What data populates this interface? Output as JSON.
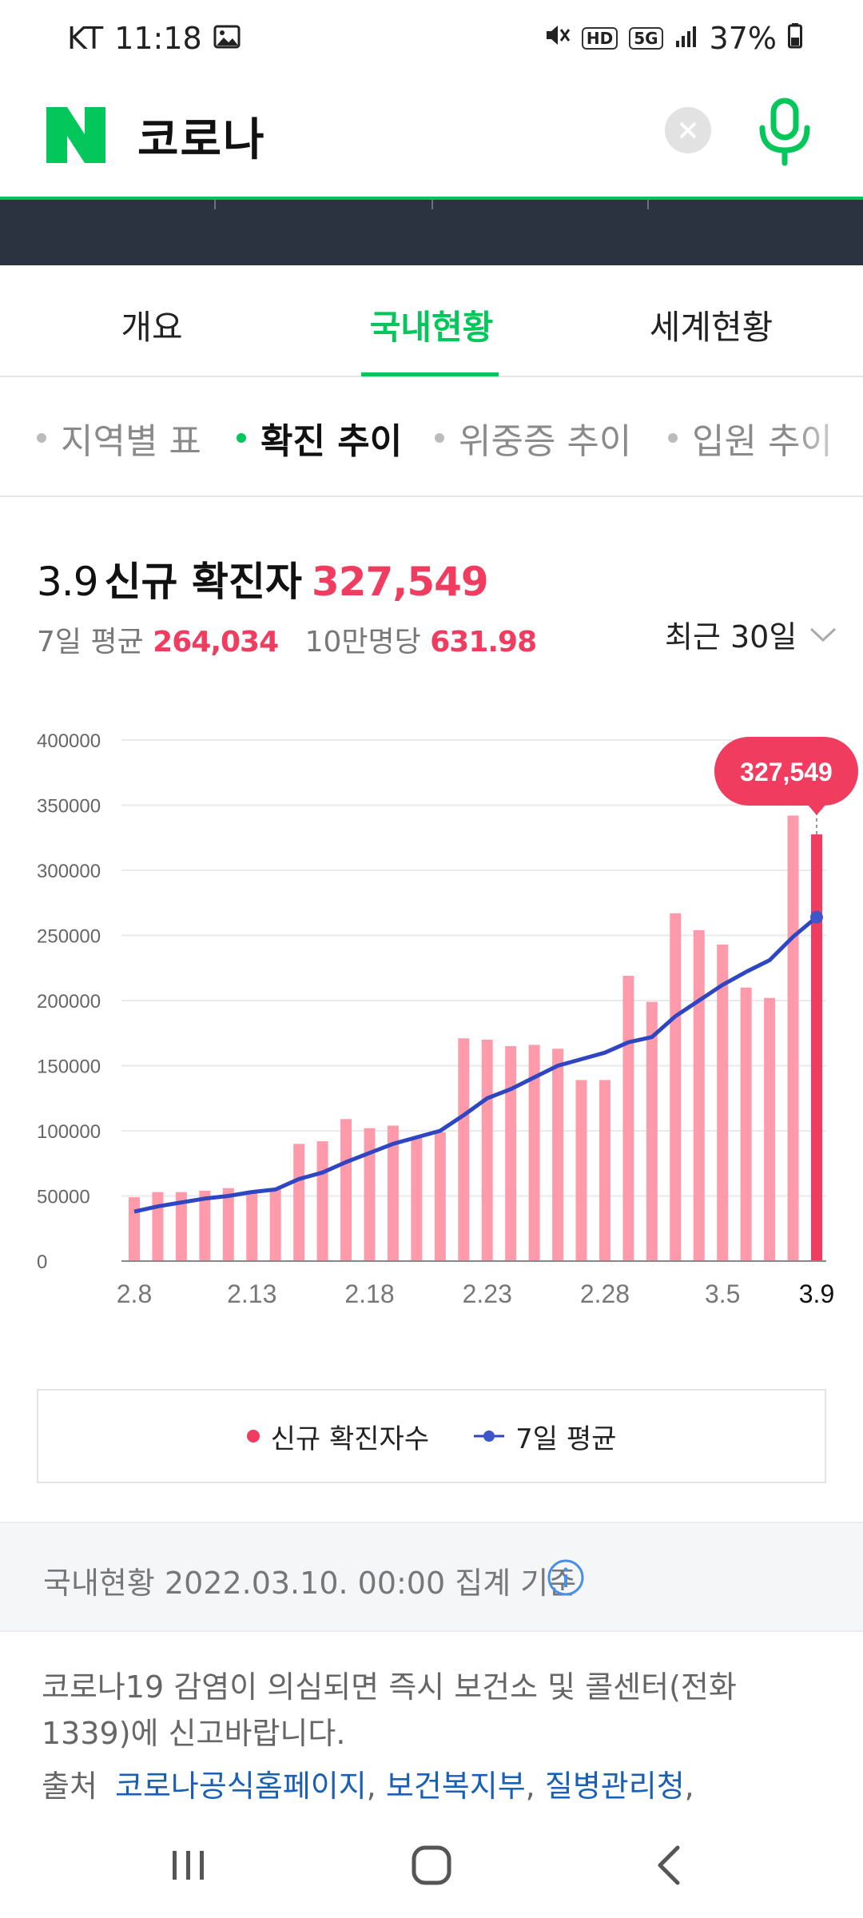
{
  "status_bar": {
    "carrier": "KT",
    "time": "11:18",
    "hd_badge": "HD",
    "net_badge": "5G",
    "battery": "37%",
    "icons": [
      "image-icon",
      "mute-icon",
      "signal-icon",
      "battery-icon"
    ]
  },
  "search": {
    "logo_letter": "N",
    "query": "코로나",
    "brand_color": "#03c75a"
  },
  "main_tabs": [
    {
      "label": "개요",
      "active": false
    },
    {
      "label": "국내현황",
      "active": true
    },
    {
      "label": "세계현황",
      "active": false
    }
  ],
  "sub_tabs": [
    {
      "label": "지역별 표",
      "active": false
    },
    {
      "label": "확진 추이",
      "active": true
    },
    {
      "label": "위중증 추이",
      "active": false
    },
    {
      "label": "입원 추이",
      "active": false
    }
  ],
  "summary": {
    "date": "3.9",
    "label": "신규 확진자",
    "count": "327,549",
    "avg_label": "7일 평균",
    "avg_value": "264,034",
    "per_label": "10만명당",
    "per_value": "631.98",
    "period": "최근 30일"
  },
  "chart_data": {
    "type": "bar",
    "x": [
      "2.8",
      "2.9",
      "2.10",
      "2.11",
      "2.12",
      "2.13",
      "2.14",
      "2.15",
      "2.16",
      "2.17",
      "2.18",
      "2.19",
      "2.20",
      "2.21",
      "2.22",
      "2.23",
      "2.24",
      "2.25",
      "2.26",
      "2.27",
      "2.28",
      "3.1",
      "3.2",
      "3.3",
      "3.4",
      "3.5",
      "3.6",
      "3.7",
      "3.8",
      "3.9"
    ],
    "x_tick_labels": [
      "2.8",
      "2.13",
      "2.18",
      "2.23",
      "2.28",
      "3.5",
      "3.9"
    ],
    "y_ticks": [
      "400000",
      "350000",
      "300000",
      "250000",
      "200000",
      "150000",
      "100000",
      "50000",
      "0"
    ],
    "ylim": [
      0,
      400000
    ],
    "grid": true,
    "highlight_label": "327,549",
    "series": [
      {
        "name": "신규 확진자수",
        "type": "bar",
        "color": "#ff9aab",
        "highlight_color": "#f03c5f",
        "values": [
          49000,
          53000,
          53000,
          54000,
          56000,
          54000,
          56000,
          90000,
          92000,
          109000,
          102000,
          104000,
          95000,
          99000,
          171000,
          170000,
          165000,
          166000,
          163000,
          139000,
          139000,
          219000,
          199000,
          267000,
          254000,
          243000,
          210000,
          202000,
          342000,
          327549
        ]
      },
      {
        "name": "7일 평균",
        "type": "line",
        "color": "#2e46c2",
        "values": [
          38000,
          42000,
          45000,
          48000,
          50000,
          53000,
          55000,
          63000,
          68000,
          76000,
          83000,
          90000,
          95000,
          100000,
          112000,
          125000,
          132000,
          141000,
          150000,
          155000,
          160000,
          168000,
          172000,
          188000,
          200000,
          212000,
          222000,
          231000,
          249000,
          264034
        ]
      }
    ]
  },
  "legend": [
    {
      "label": "신규 확진자수",
      "color": "#f03c5f"
    },
    {
      "label": "7일 평균",
      "color": "#2e46c2"
    }
  ],
  "footer": {
    "basis": "국내현황 2022.03.10. 00:00 집계 기준",
    "notice": "코로나19 감염이 의심되면 즉시 보건소 및 콜센터(전화 1339)에 신고바랍니다.",
    "sources_label": "출처",
    "sources": [
      "코로나공식홈페이지",
      "보건복지부",
      "질병관리청"
    ]
  },
  "nav": [
    "recent-apps-icon",
    "home-icon",
    "back-icon"
  ]
}
